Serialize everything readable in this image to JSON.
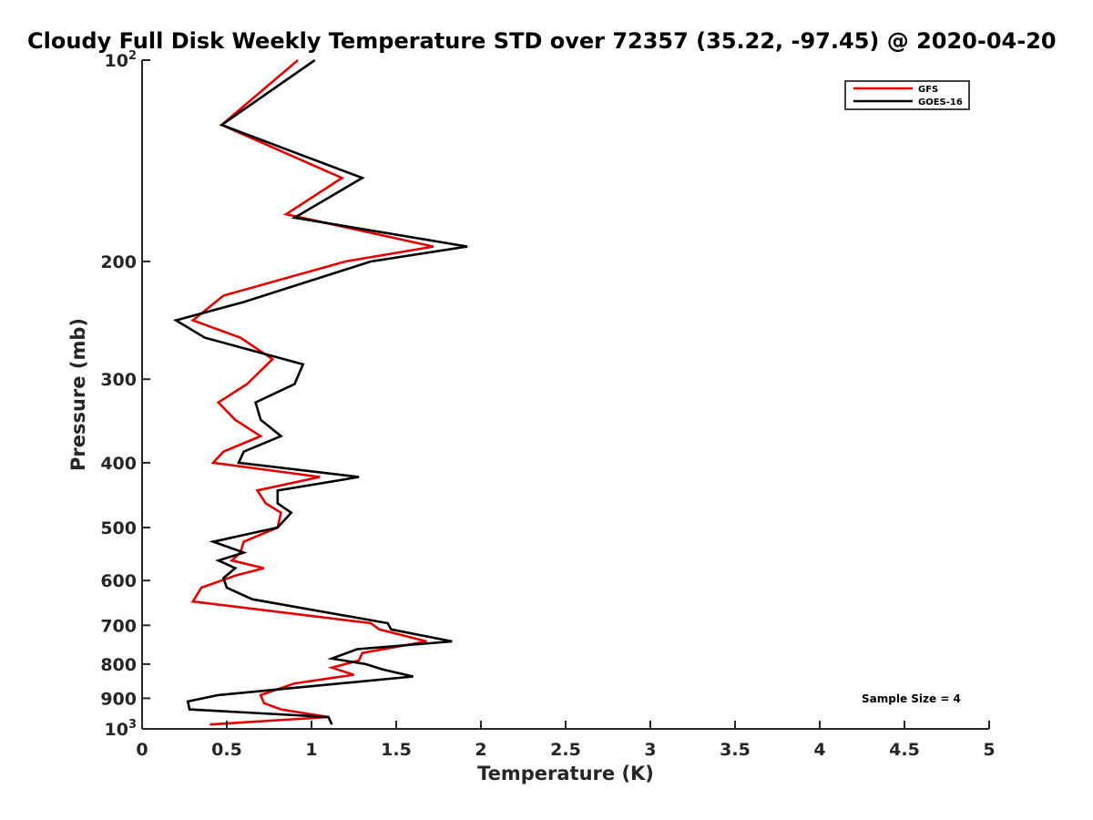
{
  "chart_data": {
    "type": "line",
    "title": "Cloudy Full Disk Weekly Temperature STD over 72357 (35.22, -97.45) @ 2020-04-20",
    "xlabel": "Temperature (K)",
    "ylabel": "Pressure (mb)",
    "xlim": [
      0,
      5
    ],
    "ylim": [
      100,
      1000
    ],
    "yscale": "log",
    "y_reversed": true,
    "grid": false,
    "legend_position": "top-right",
    "x_ticks": [
      "0",
      "0.5",
      "1",
      "1.5",
      "2",
      "2.5",
      "3",
      "3.5",
      "4",
      "4.5",
      "5"
    ],
    "x_tick_values": [
      0,
      0.5,
      1,
      1.5,
      2,
      2.5,
      3,
      3.5,
      4,
      4.5,
      5
    ],
    "y_ticks": [
      {
        "value": 100,
        "label": "10",
        "sup": "2"
      },
      {
        "value": 200,
        "label": "200",
        "sup": ""
      },
      {
        "value": 300,
        "label": "300",
        "sup": ""
      },
      {
        "value": 400,
        "label": "400",
        "sup": ""
      },
      {
        "value": 500,
        "label": "500",
        "sup": ""
      },
      {
        "value": 600,
        "label": "600",
        "sup": ""
      },
      {
        "value": 700,
        "label": "700",
        "sup": ""
      },
      {
        "value": 800,
        "label": "800",
        "sup": ""
      },
      {
        "value": 900,
        "label": "900",
        "sup": ""
      },
      {
        "value": 1000,
        "label": "10",
        "sup": "3"
      }
    ],
    "annotation": "Sample Size = 4",
    "series": [
      {
        "name": "GFS",
        "color": "#e00000",
        "points": [
          [
            0.92,
            100
          ],
          [
            0.47,
            125
          ],
          [
            1.18,
            150
          ],
          [
            0.85,
            170
          ],
          [
            1.72,
            190
          ],
          [
            1.2,
            200
          ],
          [
            0.48,
            225
          ],
          [
            0.3,
            245
          ],
          [
            0.58,
            260
          ],
          [
            0.77,
            280
          ],
          [
            0.62,
            305
          ],
          [
            0.45,
            325
          ],
          [
            0.55,
            345
          ],
          [
            0.7,
            365
          ],
          [
            0.48,
            385
          ],
          [
            0.42,
            400
          ],
          [
            1.05,
            420
          ],
          [
            0.68,
            440
          ],
          [
            0.73,
            460
          ],
          [
            0.82,
            475
          ],
          [
            0.8,
            500
          ],
          [
            0.6,
            525
          ],
          [
            0.58,
            545
          ],
          [
            0.53,
            560
          ],
          [
            0.72,
            575
          ],
          [
            0.55,
            590
          ],
          [
            0.35,
            615
          ],
          [
            0.3,
            645
          ],
          [
            1.35,
            695
          ],
          [
            1.4,
            710
          ],
          [
            1.68,
            740
          ],
          [
            1.3,
            770
          ],
          [
            1.28,
            790
          ],
          [
            1.12,
            810
          ],
          [
            1.25,
            830
          ],
          [
            0.9,
            855
          ],
          [
            0.7,
            890
          ],
          [
            0.72,
            915
          ],
          [
            0.82,
            935
          ],
          [
            1.1,
            960
          ],
          [
            0.4,
            985
          ]
        ]
      },
      {
        "name": "GOES-16",
        "color": "#000000",
        "points": [
          [
            1.02,
            100
          ],
          [
            0.47,
            125
          ],
          [
            1.3,
            150
          ],
          [
            0.9,
            172
          ],
          [
            1.92,
            190
          ],
          [
            1.35,
            200
          ],
          [
            0.6,
            230
          ],
          [
            0.2,
            245
          ],
          [
            0.37,
            260
          ],
          [
            0.95,
            285
          ],
          [
            0.9,
            305
          ],
          [
            0.67,
            325
          ],
          [
            0.7,
            345
          ],
          [
            0.82,
            365
          ],
          [
            0.6,
            385
          ],
          [
            0.57,
            400
          ],
          [
            1.28,
            420
          ],
          [
            0.8,
            440
          ],
          [
            0.8,
            460
          ],
          [
            0.88,
            475
          ],
          [
            0.8,
            500
          ],
          [
            0.42,
            525
          ],
          [
            0.6,
            545
          ],
          [
            0.45,
            560
          ],
          [
            0.55,
            575
          ],
          [
            0.48,
            595
          ],
          [
            0.5,
            615
          ],
          [
            0.65,
            640
          ],
          [
            1.45,
            695
          ],
          [
            1.47,
            710
          ],
          [
            1.83,
            740
          ],
          [
            1.27,
            760
          ],
          [
            1.12,
            785
          ],
          [
            1.32,
            800
          ],
          [
            1.42,
            815
          ],
          [
            1.6,
            835
          ],
          [
            0.45,
            890
          ],
          [
            0.27,
            910
          ],
          [
            0.28,
            935
          ],
          [
            1.1,
            960
          ],
          [
            1.12,
            985
          ]
        ]
      }
    ]
  }
}
